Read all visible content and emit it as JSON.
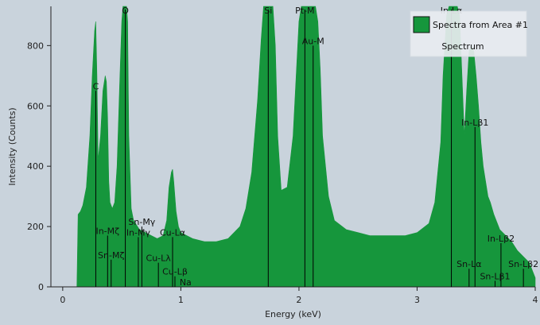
{
  "chart_data": {
    "type": "area",
    "title": "",
    "xlabel": "Energy (keV)",
    "ylabel": "Intensity (Counts)",
    "xlim": [
      -0.1,
      4.0
    ],
    "ylim": [
      0,
      930
    ],
    "xticks": [
      0,
      1,
      2,
      3,
      4
    ],
    "yticks": [
      0,
      200,
      400,
      600,
      800
    ],
    "grid": false,
    "legend_position": "top-right",
    "colors": {
      "fill": "#16963c",
      "background": "#c9d3dc",
      "marker": "#000000"
    },
    "legend": {
      "entry": "Spectra from Area #1",
      "footer": "Spectrum"
    },
    "series": [
      {
        "name": "Spectra from Area #1",
        "x": [
          0.12,
          0.13,
          0.15,
          0.17,
          0.2,
          0.23,
          0.25,
          0.27,
          0.28,
          0.29,
          0.3,
          0.32,
          0.34,
          0.36,
          0.37,
          0.38,
          0.39,
          0.4,
          0.42,
          0.44,
          0.46,
          0.48,
          0.5,
          0.51,
          0.52,
          0.53,
          0.54,
          0.55,
          0.56,
          0.58,
          0.6,
          0.65,
          0.7,
          0.75,
          0.8,
          0.85,
          0.88,
          0.9,
          0.92,
          0.93,
          0.94,
          0.96,
          0.98,
          1.0,
          1.05,
          1.1,
          1.2,
          1.3,
          1.4,
          1.5,
          1.55,
          1.6,
          1.65,
          1.68,
          1.7,
          1.72,
          1.73,
          1.75,
          1.77,
          1.78,
          1.8,
          1.82,
          1.85,
          1.9,
          1.95,
          2.0,
          2.02,
          2.04,
          2.05,
          2.06,
          2.08,
          2.1,
          2.12,
          2.14,
          2.16,
          2.18,
          2.2,
          2.25,
          2.3,
          2.4,
          2.5,
          2.6,
          2.7,
          2.8,
          2.9,
          3.0,
          3.1,
          3.15,
          3.2,
          3.22,
          3.25,
          3.27,
          3.28,
          3.3,
          3.32,
          3.34,
          3.36,
          3.38,
          3.4,
          3.42,
          3.44,
          3.46,
          3.48,
          3.5,
          3.52,
          3.54,
          3.56,
          3.58,
          3.6,
          3.62,
          3.65,
          3.7,
          3.75,
          3.8,
          3.85,
          3.9,
          3.95,
          3.98,
          4.0
        ],
        "y": [
          0,
          240,
          250,
          270,
          330,
          500,
          700,
          850,
          880,
          700,
          420,
          500,
          650,
          700,
          680,
          560,
          350,
          280,
          260,
          280,
          400,
          650,
          880,
          950,
          950,
          950,
          950,
          880,
          500,
          260,
          220,
          190,
          180,
          170,
          160,
          170,
          220,
          330,
          380,
          390,
          350,
          250,
          200,
          180,
          170,
          160,
          150,
          150,
          160,
          200,
          260,
          380,
          620,
          820,
          950,
          950,
          950,
          950,
          950,
          950,
          800,
          500,
          320,
          330,
          500,
          880,
          950,
          950,
          950,
          950,
          950,
          950,
          950,
          950,
          880,
          720,
          500,
          300,
          220,
          190,
          180,
          170,
          170,
          170,
          170,
          180,
          210,
          280,
          480,
          700,
          900,
          950,
          950,
          950,
          950,
          950,
          900,
          700,
          500,
          650,
          780,
          800,
          780,
          700,
          600,
          480,
          400,
          350,
          300,
          280,
          240,
          190,
          170,
          150,
          120,
          100,
          80,
          50,
          30
        ]
      }
    ],
    "annotations": [
      {
        "label": "C",
        "x": 0.28,
        "y": 650
      },
      {
        "label": "O",
        "x": 0.53,
        "y": 930
      },
      {
        "label": "In-Mζ",
        "x": 0.38,
        "y": 170
      },
      {
        "label": "Sn-Mζ",
        "x": 0.41,
        "y": 90
      },
      {
        "label": "Sn-Mγ",
        "x": 0.67,
        "y": 200
      },
      {
        "label": "In-Mγ",
        "x": 0.64,
        "y": 165
      },
      {
        "label": "Cu-Lα",
        "x": 0.93,
        "y": 165
      },
      {
        "label": "Cu-Lλ",
        "x": 0.81,
        "y": 80
      },
      {
        "label": "Cu-Lβ",
        "x": 0.95,
        "y": 35
      },
      {
        "label": "Na",
        "x": 1.04,
        "y": 0
      },
      {
        "label": "Si",
        "x": 1.74,
        "y": 930
      },
      {
        "label": "Pt-M",
        "x": 2.05,
        "y": 930
      },
      {
        "label": "Au-M",
        "x": 2.12,
        "y": 800
      },
      {
        "label": "In-Lα",
        "x": 3.29,
        "y": 930
      },
      {
        "label": "In-Lβ1",
        "x": 3.49,
        "y": 530
      },
      {
        "label": "In-Lβ2",
        "x": 3.71,
        "y": 145
      },
      {
        "label": "Sn-Lα",
        "x": 3.44,
        "y": 60
      },
      {
        "label": "Sn-Lβ1",
        "x": 3.66,
        "y": 20
      },
      {
        "label": "Sn-Lβ2",
        "x": 3.9,
        "y": 60
      }
    ]
  }
}
